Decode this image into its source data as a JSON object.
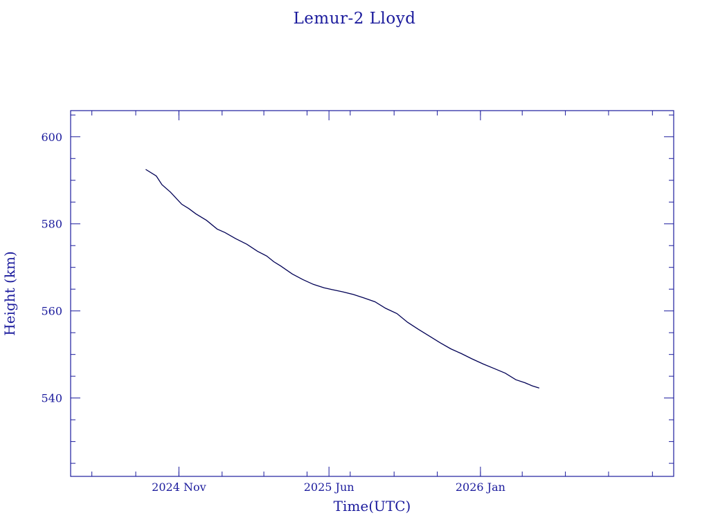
{
  "chart_data": {
    "type": "line",
    "title": "Lemur-2 Lloyd",
    "xlabel": "Time(UTC)",
    "ylabel": "Height (km)",
    "xlim": [
      "2024-06-01",
      "2026-10-01"
    ],
    "ylim": [
      522,
      606
    ],
    "y_ticks": [
      540,
      560,
      580,
      600
    ],
    "x_ticks": [
      {
        "date": "2024-11-01",
        "label": "2024 Nov"
      },
      {
        "date": "2025-06-01",
        "label": "2025 Jun"
      },
      {
        "date": "2026-01-01",
        "label": "2026 Jan"
      }
    ],
    "grid": false,
    "colors": {
      "axis": "#1a1a9c",
      "line": "#000055"
    },
    "series": [
      {
        "x": [
          "2024-09-15",
          "2024-09-30",
          "2024-10-08",
          "2024-10-20",
          "2024-11-05",
          "2024-11-15",
          "2024-11-25",
          "2024-12-10",
          "2024-12-25",
          "2025-01-05",
          "2025-01-20",
          "2025-02-05",
          "2025-02-20",
          "2025-03-05",
          "2025-03-15",
          "2025-03-25",
          "2025-04-10",
          "2025-04-25",
          "2025-05-10",
          "2025-05-25",
          "2025-06-05",
          "2025-06-20",
          "2025-07-05",
          "2025-07-20",
          "2025-08-05",
          "2025-08-20",
          "2025-09-05",
          "2025-09-20",
          "2025-10-05",
          "2025-10-20",
          "2025-11-05",
          "2025-11-20",
          "2025-12-05",
          "2025-12-20",
          "2026-01-05",
          "2026-01-20",
          "2026-02-05",
          "2026-02-20",
          "2026-03-05",
          "2026-03-15",
          "2026-03-25"
        ],
        "y": [
          592.5,
          591.0,
          589.0,
          587.3,
          584.5,
          583.5,
          582.3,
          580.8,
          578.8,
          578.0,
          576.6,
          575.3,
          573.7,
          572.6,
          571.3,
          570.3,
          568.5,
          567.2,
          566.1,
          565.3,
          564.9,
          564.4,
          563.8,
          563.0,
          562.1,
          560.6,
          559.4,
          557.4,
          555.8,
          554.3,
          552.7,
          551.3,
          550.2,
          549.0,
          547.8,
          546.8,
          545.7,
          544.2,
          543.5,
          542.8,
          542.3
        ]
      }
    ]
  }
}
